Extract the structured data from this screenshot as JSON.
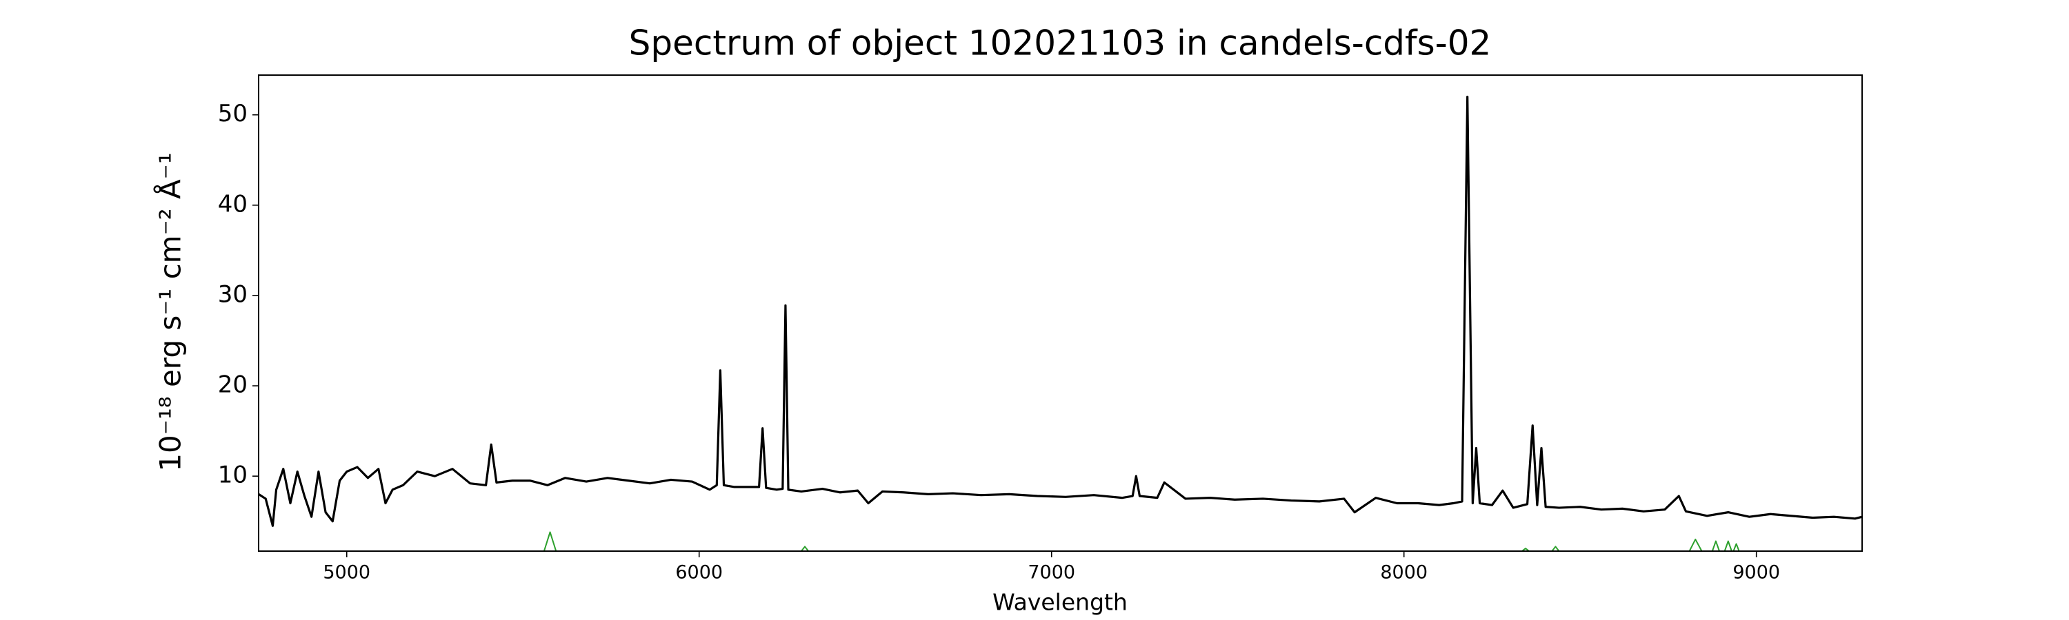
{
  "chart_data": {
    "type": "line",
    "title": "Spectrum of object 102021103 in candels-cdfs-02",
    "xlabel": "Wavelength",
    "ylabel": "10⁻¹⁸ erg s⁻¹ cm⁻² Å⁻¹",
    "xlim": [
      4750,
      9300
    ],
    "ylim": [
      1.7,
      54.4
    ],
    "xticks": [
      5000,
      6000,
      7000,
      8000,
      9000
    ],
    "yticks": [
      10,
      20,
      30,
      40,
      50
    ],
    "grid": false,
    "series": [
      {
        "color": "#000000",
        "x": [
          4750,
          4770,
          4790,
          4800,
          4820,
          4840,
          4860,
          4880,
          4900,
          4920,
          4940,
          4960,
          4980,
          5000,
          5030,
          5060,
          5090,
          5110,
          5130,
          5160,
          5200,
          5250,
          5300,
          5350,
          5395,
          5410,
          5425,
          5470,
          5520,
          5570,
          5620,
          5680,
          5740,
          5800,
          5860,
          5920,
          5980,
          6030,
          6050,
          6060,
          6070,
          6100,
          6140,
          6170,
          6180,
          6190,
          6220,
          6237,
          6245,
          6253,
          6290,
          6350,
          6400,
          6450,
          6480,
          6520,
          6580,
          6650,
          6720,
          6800,
          6880,
          6960,
          7040,
          7120,
          7200,
          7230,
          7240,
          7250,
          7300,
          7320,
          7380,
          7450,
          7520,
          7600,
          7680,
          7760,
          7830,
          7860,
          7920,
          7980,
          8040,
          8100,
          8140,
          8165,
          8180,
          8195,
          8205,
          8215,
          8250,
          8280,
          8310,
          8350,
          8365,
          8378,
          8390,
          8402,
          8440,
          8500,
          8560,
          8620,
          8680,
          8740,
          8780,
          8800,
          8860,
          8920,
          8980,
          9040,
          9100,
          9160,
          9220,
          9280,
          9300
        ],
        "values": [
          8.0,
          7.5,
          4.5,
          8.5,
          10.8,
          7.0,
          10.5,
          7.8,
          5.5,
          10.5,
          6.0,
          5.0,
          9.5,
          10.5,
          11.0,
          9.8,
          10.8,
          7.0,
          8.5,
          9.0,
          10.5,
          10.0,
          10.8,
          9.2,
          9.0,
          13.5,
          9.3,
          9.5,
          9.5,
          9.0,
          9.8,
          9.4,
          9.8,
          9.5,
          9.2,
          9.6,
          9.4,
          8.5,
          9.0,
          21.7,
          9.0,
          8.8,
          8.8,
          8.8,
          15.3,
          8.7,
          8.5,
          8.6,
          28.9,
          8.5,
          8.3,
          8.6,
          8.2,
          8.4,
          7.0,
          8.3,
          8.2,
          8.0,
          8.1,
          7.9,
          8.0,
          7.8,
          7.7,
          7.9,
          7.6,
          7.8,
          10.0,
          7.8,
          7.6,
          9.3,
          7.5,
          7.6,
          7.4,
          7.5,
          7.3,
          7.2,
          7.5,
          6.0,
          7.6,
          7.0,
          7.0,
          6.8,
          7.0,
          7.2,
          52.0,
          7.0,
          13.1,
          7.0,
          6.8,
          8.4,
          6.5,
          6.9,
          15.6,
          6.8,
          13.1,
          6.6,
          6.5,
          6.6,
          6.3,
          6.4,
          6.1,
          6.3,
          7.8,
          6.1,
          5.6,
          6.0,
          5.5,
          5.8,
          5.6,
          5.4,
          5.5,
          5.3,
          5.5
        ]
      },
      {
        "color": "#2ca02c",
        "x": [
          4750,
          5560,
          5577,
          5594,
          6290,
          6300,
          6310,
          8335,
          8345,
          8355,
          8420,
          8430,
          8440,
          8810,
          8827,
          8845,
          8875,
          8885,
          8895,
          8910,
          8920,
          8930,
          8935,
          8943,
          8951,
          9300
        ],
        "values": [
          1.7,
          1.7,
          3.8,
          1.7,
          1.7,
          2.2,
          1.7,
          1.7,
          2.0,
          1.7,
          1.7,
          2.2,
          1.7,
          1.7,
          3.0,
          1.7,
          1.7,
          2.8,
          1.7,
          1.7,
          2.8,
          1.7,
          1.7,
          2.5,
          1.7,
          1.7
        ]
      }
    ]
  }
}
